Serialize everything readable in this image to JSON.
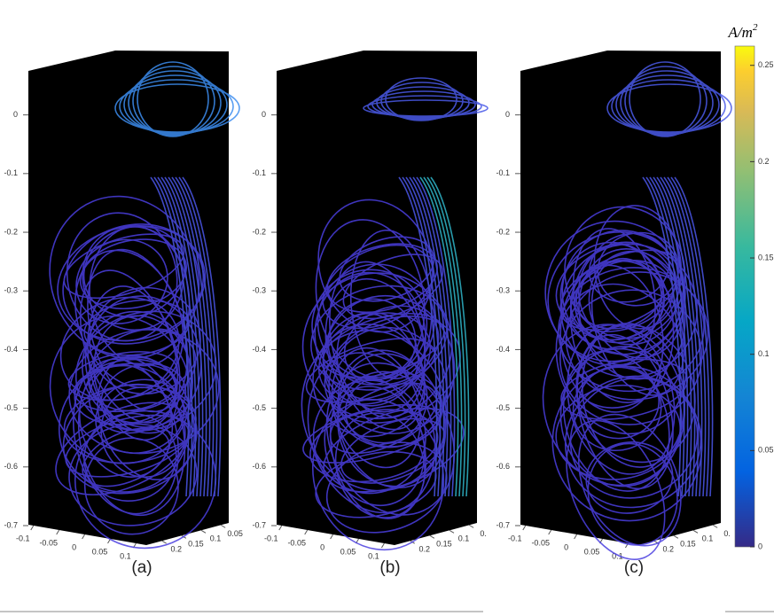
{
  "chart_data": {
    "type": "streamline3d",
    "panels": [
      {
        "label": "(a)",
        "zlim": [
          -0.7,
          0.075
        ],
        "zticks": [
          0,
          -0.1,
          -0.2,
          -0.3,
          -0.4,
          -0.5,
          -0.6,
          -0.7
        ],
        "xlim": [
          -0.11,
          0.12
        ],
        "xticks": [
          -0.1,
          -0.05,
          0,
          0.05,
          0.1
        ],
        "ylim": [
          0.24,
          0.03
        ],
        "yticks": [
          0.2,
          0.15,
          0.1,
          0.05
        ]
      },
      {
        "label": "(b)",
        "zlim": [
          -0.7,
          0.075
        ],
        "zticks": [
          0,
          -0.1,
          -0.2,
          -0.3,
          -0.4,
          -0.5,
          -0.6,
          -0.7
        ],
        "xlim": [
          -0.11,
          0.12
        ],
        "xticks": [
          -0.1,
          -0.05,
          0,
          0.05,
          0.1
        ],
        "ylim": [
          0.24,
          0.03
        ],
        "yticks": [
          0.2,
          0.15,
          0.1,
          {
            "value": 0.05,
            "label": "0."
          }
        ]
      },
      {
        "label": "(c)",
        "zlim": [
          -0.7,
          0.075
        ],
        "zticks": [
          0,
          -0.1,
          -0.2,
          -0.3,
          -0.4,
          -0.5,
          -0.6,
          -0.7
        ],
        "xlim": [
          -0.11,
          0.12
        ],
        "xticks": [
          -0.1,
          -0.05,
          0,
          0.05,
          0.1
        ],
        "ylim": [
          0.24,
          0.03
        ],
        "yticks": [
          0.2,
          0.15,
          0.1,
          {
            "value": 0.05,
            "label": "0."
          }
        ]
      }
    ],
    "colorbar": {
      "label": "A/m",
      "label_sup": "2",
      "lim": [
        0,
        0.26
      ],
      "ticks": [
        0,
        0.05,
        0.1,
        0.15,
        0.2,
        0.25
      ]
    }
  }
}
